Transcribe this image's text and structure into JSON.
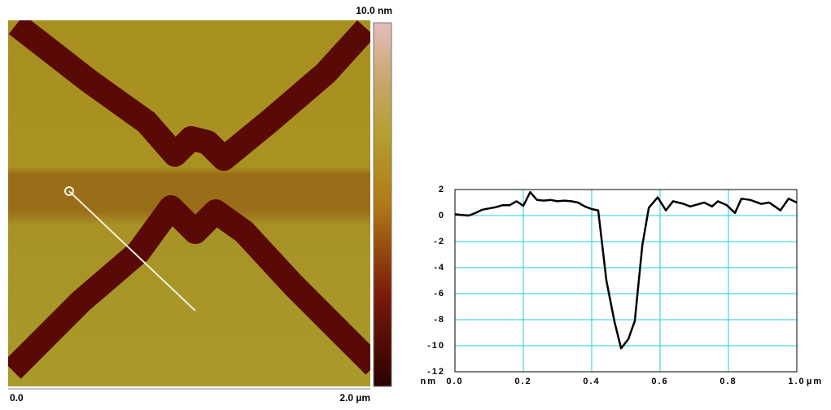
{
  "image": {
    "colorbar_label": "10.0 nm",
    "scale_start": "0.0",
    "scale_end": "2.0 µm"
  },
  "chart_data": {
    "type": "line",
    "x_unit": "µm",
    "y_unit": "nm",
    "xlim": [
      0,
      1.0
    ],
    "ylim": [
      -12,
      2
    ],
    "xticks": [
      {
        "value": 0,
        "label": "0.0"
      },
      0.2,
      0.4,
      0.6,
      0.8,
      {
        "value": 1.0,
        "label": "1.0"
      }
    ],
    "yticks": [
      2,
      0,
      -2,
      -4,
      -6,
      -8,
      -10,
      -12
    ],
    "grid": true,
    "grid_color": "#22cce0",
    "series": [
      {
        "color": "#000000",
        "x": [
          0,
          0.02,
          0.04,
          0.06,
          0.08,
          0.1,
          0.12,
          0.14,
          0.16,
          0.18,
          0.2,
          0.22,
          0.24,
          0.26,
          0.28,
          0.3,
          0.32,
          0.34,
          0.36,
          0.38,
          0.4,
          0.419,
          0.443,
          0.467,
          0.486,
          0.507,
          0.526,
          0.548,
          0.567,
          0.593,
          0.617,
          0.638,
          0.669,
          0.688,
          0.729,
          0.752,
          0.769,
          0.795,
          0.819,
          0.838,
          0.864,
          0.895,
          0.919,
          0.936,
          0.952,
          0.976,
          1.0
        ],
        "values": [
          0.1,
          0.05,
          0,
          0.2,
          0.45,
          0.55,
          0.65,
          0.8,
          0.8,
          1.1,
          0.75,
          1.8,
          1.2,
          1.15,
          1.2,
          1.1,
          1.15,
          1.1,
          1.0,
          0.7,
          0.5,
          0.4,
          -5,
          -8.2,
          -10.2,
          -9.5,
          -8.1,
          -2.3,
          0.6,
          1.4,
          0.4,
          1.1,
          0.9,
          0.7,
          1.0,
          0.7,
          1.1,
          0.8,
          0.2,
          1.3,
          1.2,
          0.9,
          1.0,
          0.7,
          0.4,
          1.3,
          1.0
        ]
      }
    ]
  }
}
